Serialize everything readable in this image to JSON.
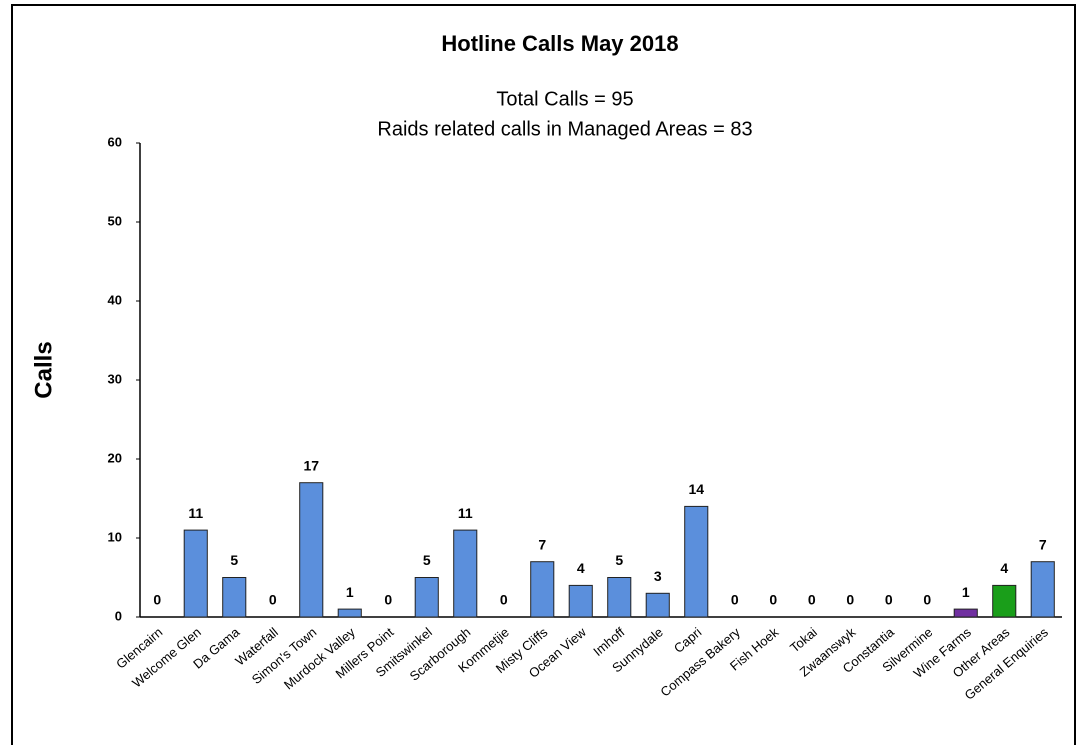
{
  "chart_data": {
    "type": "bar",
    "title": "Hotline Calls May 2018",
    "subtitle": [
      "Total Calls = 95",
      "Raids related calls in Managed Areas = 83"
    ],
    "y_label": "Calls",
    "categories": [
      "Glencairn",
      "Welcome Glen",
      "Da Gama",
      "Waterfall",
      "Simon's Town",
      "Murdock Valley",
      "Millers Point",
      "Smitswinkel",
      "Scarborough",
      "Kommetjie",
      "Misty Cliffs",
      "Ocean View",
      "Imhoff",
      "Sunnydale",
      "Capri",
      "Compass Bakery",
      "Fish Hoek",
      "Tokai",
      "Zwaanswyk",
      "Constantia",
      "Silvermine",
      "Wine Farms",
      "Other Areas",
      "General Enquiries"
    ],
    "values": [
      0,
      11,
      5,
      0,
      17,
      1,
      0,
      5,
      11,
      0,
      7,
      4,
      5,
      3,
      14,
      0,
      0,
      0,
      0,
      0,
      0,
      1,
      4,
      7
    ],
    "colors": [
      "#5b8fdc",
      "#5b8fdc",
      "#5b8fdc",
      "#5b8fdc",
      "#5b8fdc",
      "#5b8fdc",
      "#5b8fdc",
      "#5b8fdc",
      "#5b8fdc",
      "#5b8fdc",
      "#5b8fdc",
      "#5b8fdc",
      "#5b8fdc",
      "#5b8fdc",
      "#5b8fdc",
      "#5b8fdc",
      "#5b8fdc",
      "#5b8fdc",
      "#5b8fdc",
      "#5b8fdc",
      "#5b8fdc",
      "#7030a0",
      "#1a9e1a",
      "#5b8fdc"
    ],
    "ylim": [
      0,
      60
    ],
    "yticks": [
      0,
      10,
      20,
      30,
      40,
      50,
      60
    ],
    "grid": false
  }
}
